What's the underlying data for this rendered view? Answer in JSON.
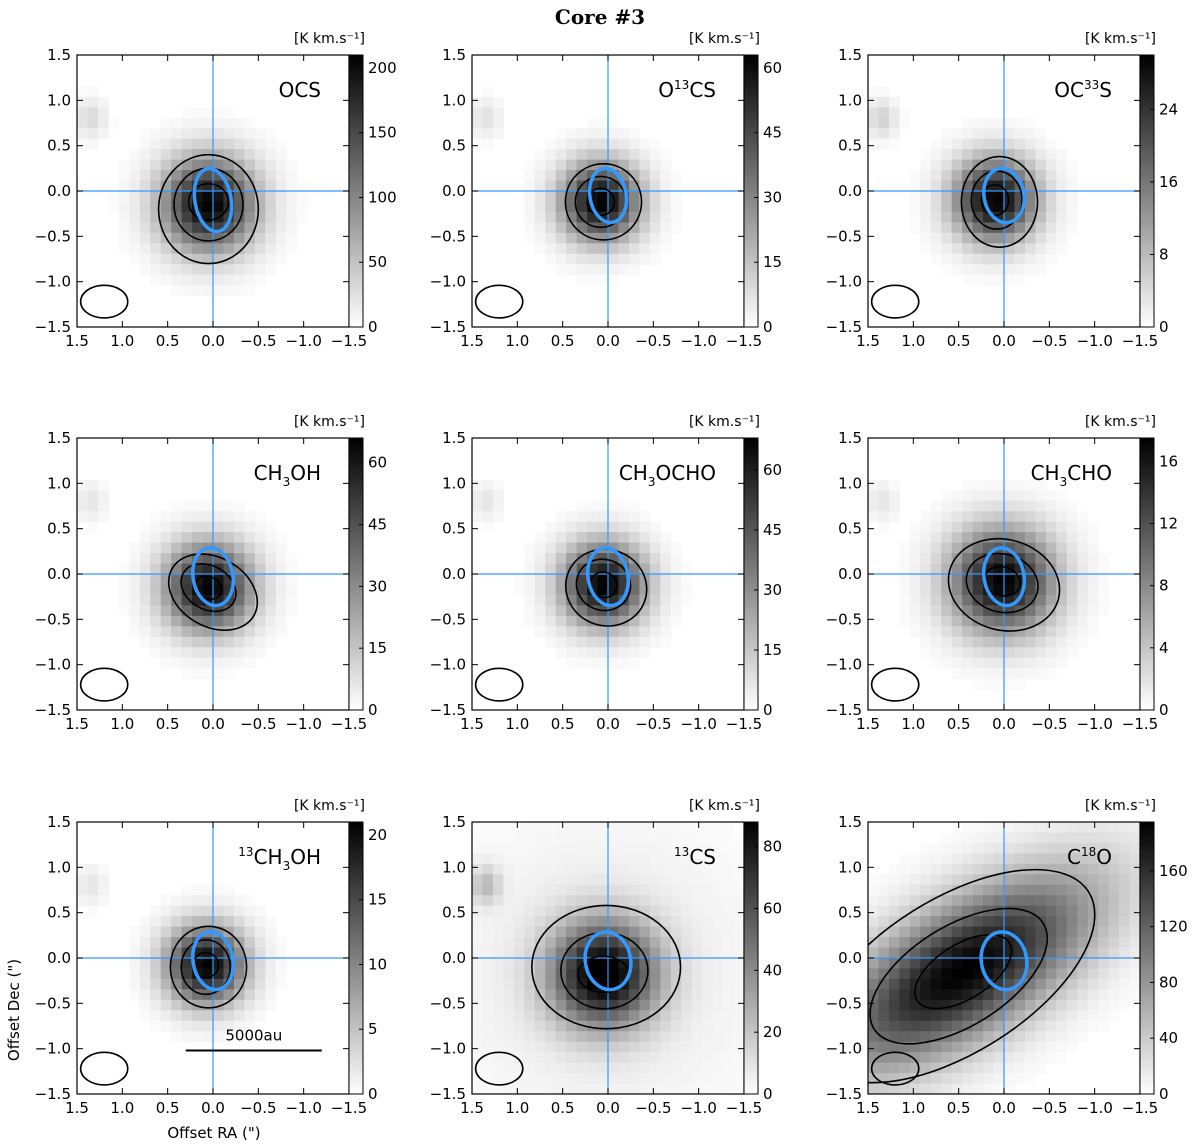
{
  "figure": {
    "title": "Core #3",
    "xlabel": "Offset RA (\")",
    "ylabel": "Offset Dec (\")",
    "scalebar_label": "5000au",
    "unit_label": "[K km.s⁻¹]"
  },
  "colors": {
    "crosshair": "#3399ff",
    "blue_contour": "#3399ff",
    "contour": "#000000",
    "cmap_low": "#ffffff",
    "cmap_high": "#000000"
  },
  "chart_data": [
    {
      "type": "heatmap",
      "molecule": {
        "base": "OCS",
        "iso_pre": "",
        "mid": "",
        "sub": "",
        "post": ""
      },
      "xlim": [
        1.5,
        -1.5
      ],
      "ylim": [
        -1.5,
        1.5
      ],
      "xticks": [
        "1.5",
        "1.0",
        "0.5",
        "0.0",
        "−0.5",
        "−1.0",
        "−1.5"
      ],
      "yticks": [
        "−1.5",
        "−1.0",
        "−0.5",
        "0.0",
        "0.5",
        "1.0",
        "1.5"
      ],
      "cbar_range": [
        0,
        210
      ],
      "cbar_ticks": [
        {
          "v": 0,
          "t": "0"
        },
        {
          "v": 50,
          "t": "50"
        },
        {
          "v": 100,
          "t": "100"
        },
        {
          "v": 150,
          "t": "150"
        },
        {
          "v": 200,
          "t": "200"
        }
      ],
      "peak_offset": [
        0.05,
        -0.15
      ],
      "peak_value": 205,
      "emission_fwhm": [
        0.45,
        0.45
      ],
      "contours": [
        {
          "cx": 0.05,
          "cy": -0.2,
          "rx": 0.55,
          "ry": 0.6,
          "angle": 0
        },
        {
          "cx": 0.05,
          "cy": -0.15,
          "rx": 0.38,
          "ry": 0.4,
          "angle": 0
        },
        {
          "cx": 0.05,
          "cy": -0.12,
          "rx": 0.22,
          "ry": 0.2,
          "angle": 0
        }
      ],
      "blue_ellipse": {
        "cx": 0.0,
        "cy": -0.1,
        "rx": 0.35,
        "ry": 0.2,
        "angle": 80
      },
      "beam": {
        "cx": 1.2,
        "cy": -1.22,
        "rx": 0.26,
        "ry": 0.18,
        "angle": 0
      },
      "secondary_blob": {
        "x": 1.35,
        "y": 0.8,
        "amp": 0.15
      }
    },
    {
      "type": "heatmap",
      "molecule": {
        "base": "",
        "iso_pre": "",
        "mid": "O",
        "sub": "13",
        "post": "CS"
      },
      "xlim": [
        1.5,
        -1.5
      ],
      "ylim": [
        -1.5,
        1.5
      ],
      "xticks": [
        "1.5",
        "1.0",
        "0.5",
        "0.0",
        "−0.5",
        "−1.0",
        "−1.5"
      ],
      "yticks": [
        "−1.5",
        "−1.0",
        "−0.5",
        "0.0",
        "0.5",
        "1.0",
        "1.5"
      ],
      "cbar_range": [
        0,
        63
      ],
      "cbar_ticks": [
        {
          "v": 0,
          "t": "0"
        },
        {
          "v": 15,
          "t": "15"
        },
        {
          "v": 30,
          "t": "30"
        },
        {
          "v": 45,
          "t": "45"
        },
        {
          "v": 60,
          "t": "60"
        }
      ],
      "peak_offset": [
        0.08,
        -0.12
      ],
      "peak_value": 62,
      "emission_fwhm": [
        0.38,
        0.38
      ],
      "contours": [
        {
          "cx": 0.05,
          "cy": -0.12,
          "rx": 0.42,
          "ry": 0.42,
          "angle": 0
        },
        {
          "cx": 0.08,
          "cy": -0.12,
          "rx": 0.28,
          "ry": 0.28,
          "angle": 0
        },
        {
          "cx": 0.08,
          "cy": -0.12,
          "rx": 0.15,
          "ry": 0.15,
          "angle": 0
        }
      ],
      "blue_ellipse": {
        "cx": 0.0,
        "cy": -0.05,
        "rx": 0.3,
        "ry": 0.2,
        "angle": 80
      },
      "beam": {
        "cx": 1.2,
        "cy": -1.22,
        "rx": 0.26,
        "ry": 0.18,
        "angle": 0
      },
      "secondary_blob": {
        "x": 1.35,
        "y": 0.8,
        "amp": 0.12
      }
    },
    {
      "type": "heatmap",
      "molecule": {
        "base": "",
        "iso_pre": "",
        "mid": "OC",
        "sub": "33",
        "post": "S"
      },
      "xlim": [
        1.5,
        -1.5
      ],
      "ylim": [
        -1.5,
        1.5
      ],
      "xticks": [
        "1.5",
        "1.0",
        "0.5",
        "0.0",
        "−0.5",
        "−1.0",
        "−1.5"
      ],
      "yticks": [
        "−1.5",
        "−1.0",
        "−0.5",
        "0.0",
        "0.5",
        "1.0",
        "1.5"
      ],
      "cbar_range": [
        0,
        30
      ],
      "cbar_ticks": [
        {
          "v": 0,
          "t": "0"
        },
        {
          "v": 8,
          "t": "8"
        },
        {
          "v": 16,
          "t": "16"
        },
        {
          "v": 24,
          "t": "24"
        }
      ],
      "peak_offset": [
        0.1,
        -0.1
      ],
      "peak_value": 29,
      "emission_fwhm": [
        0.4,
        0.4
      ],
      "contours": [
        {
          "cx": 0.05,
          "cy": -0.12,
          "rx": 0.42,
          "ry": 0.5,
          "angle": 0
        },
        {
          "cx": 0.08,
          "cy": -0.1,
          "rx": 0.28,
          "ry": 0.32,
          "angle": 0
        },
        {
          "cx": 0.1,
          "cy": -0.1,
          "rx": 0.15,
          "ry": 0.17,
          "angle": 0
        }
      ],
      "blue_ellipse": {
        "cx": 0.0,
        "cy": -0.05,
        "rx": 0.3,
        "ry": 0.22,
        "angle": 80
      },
      "beam": {
        "cx": 1.2,
        "cy": -1.22,
        "rx": 0.26,
        "ry": 0.18,
        "angle": 0
      },
      "secondary_blob": {
        "x": 1.35,
        "y": 0.8,
        "amp": 0.18
      }
    },
    {
      "type": "heatmap",
      "molecule": {
        "base": "",
        "iso_pre": "",
        "mid": "CH",
        "sub": "3",
        "post": "OH"
      },
      "xlim": [
        1.5,
        -1.5
      ],
      "ylim": [
        -1.5,
        1.5
      ],
      "xticks": [
        "1.5",
        "1.0",
        "0.5",
        "0.0",
        "−0.5",
        "−1.0",
        "−1.5"
      ],
      "yticks": [
        "−1.5",
        "−1.0",
        "−0.5",
        "0.0",
        "0.5",
        "1.0",
        "1.5"
      ],
      "cbar_range": [
        0,
        66
      ],
      "cbar_ticks": [
        {
          "v": 0,
          "t": "0"
        },
        {
          "v": 15,
          "t": "15"
        },
        {
          "v": 30,
          "t": "30"
        },
        {
          "v": 45,
          "t": "45"
        },
        {
          "v": 60,
          "t": "60"
        }
      ],
      "peak_offset": [
        0.05,
        -0.15
      ],
      "peak_value": 64,
      "emission_fwhm": [
        0.42,
        0.42
      ],
      "contours": [
        {
          "cx": 0.0,
          "cy": -0.2,
          "rx": 0.52,
          "ry": 0.38,
          "angle": 30
        },
        {
          "cx": 0.05,
          "cy": -0.15,
          "rx": 0.32,
          "ry": 0.24,
          "angle": 30
        },
        {
          "cx": 0.05,
          "cy": -0.15,
          "rx": 0.15,
          "ry": 0.12,
          "angle": 30
        }
      ],
      "blue_ellipse": {
        "cx": 0.0,
        "cy": -0.03,
        "rx": 0.32,
        "ry": 0.22,
        "angle": 80
      },
      "beam": {
        "cx": 1.2,
        "cy": -1.22,
        "rx": 0.26,
        "ry": 0.18,
        "angle": 0
      },
      "secondary_blob": {
        "x": 1.35,
        "y": 0.8,
        "amp": 0.1
      }
    },
    {
      "type": "heatmap",
      "molecule": {
        "base": "",
        "iso_pre": "",
        "mid": "CH",
        "sub": "3",
        "post": "OCHO"
      },
      "xlim": [
        1.5,
        -1.5
      ],
      "ylim": [
        -1.5,
        1.5
      ],
      "xticks": [
        "1.5",
        "1.0",
        "0.5",
        "0.0",
        "−0.5",
        "−1.0",
        "−1.5"
      ],
      "yticks": [
        "−1.5",
        "−1.0",
        "−0.5",
        "0.0",
        "0.5",
        "1.0",
        "1.5"
      ],
      "cbar_range": [
        0,
        68
      ],
      "cbar_ticks": [
        {
          "v": 0,
          "t": "0"
        },
        {
          "v": 15,
          "t": "15"
        },
        {
          "v": 30,
          "t": "30"
        },
        {
          "v": 45,
          "t": "45"
        },
        {
          "v": 60,
          "t": "60"
        }
      ],
      "peak_offset": [
        0.05,
        -0.12
      ],
      "peak_value": 67,
      "emission_fwhm": [
        0.4,
        0.4
      ],
      "contours": [
        {
          "cx": 0.02,
          "cy": -0.15,
          "rx": 0.45,
          "ry": 0.42,
          "angle": 20
        },
        {
          "cx": 0.05,
          "cy": -0.12,
          "rx": 0.3,
          "ry": 0.28,
          "angle": 20
        },
        {
          "cx": 0.05,
          "cy": -0.12,
          "rx": 0.15,
          "ry": 0.14,
          "angle": 20
        }
      ],
      "blue_ellipse": {
        "cx": 0.0,
        "cy": -0.03,
        "rx": 0.32,
        "ry": 0.22,
        "angle": 80
      },
      "beam": {
        "cx": 1.2,
        "cy": -1.22,
        "rx": 0.26,
        "ry": 0.18,
        "angle": 0
      },
      "secondary_blob": {
        "x": 1.35,
        "y": 0.8,
        "amp": 0.1
      }
    },
    {
      "type": "heatmap",
      "molecule": {
        "base": "",
        "iso_pre": "",
        "mid": "CH",
        "sub": "3",
        "post": "CHO"
      },
      "xlim": [
        1.5,
        -1.5
      ],
      "ylim": [
        -1.5,
        1.5
      ],
      "xticks": [
        "1.5",
        "1.0",
        "0.5",
        "0.0",
        "−0.5",
        "−1.0",
        "−1.5"
      ],
      "yticks": [
        "−1.5",
        "−1.0",
        "−0.5",
        "0.0",
        "0.5",
        "1.0",
        "1.5"
      ],
      "cbar_range": [
        0,
        17.5
      ],
      "cbar_ticks": [
        {
          "v": 0,
          "t": "0"
        },
        {
          "v": 4,
          "t": "4"
        },
        {
          "v": 8,
          "t": "8"
        },
        {
          "v": 12,
          "t": "12"
        },
        {
          "v": 16,
          "t": "16"
        }
      ],
      "peak_offset": [
        0.02,
        -0.08
      ],
      "peak_value": 17,
      "emission_fwhm": [
        0.5,
        0.5
      ],
      "contours": [
        {
          "cx": 0.0,
          "cy": -0.12,
          "rx": 0.62,
          "ry": 0.5,
          "angle": 15
        },
        {
          "cx": 0.02,
          "cy": -0.1,
          "rx": 0.4,
          "ry": 0.32,
          "angle": 15
        },
        {
          "cx": 0.02,
          "cy": -0.08,
          "rx": 0.2,
          "ry": 0.16,
          "angle": 15
        }
      ],
      "blue_ellipse": {
        "cx": 0.0,
        "cy": -0.03,
        "rx": 0.32,
        "ry": 0.22,
        "angle": 80
      },
      "beam": {
        "cx": 1.2,
        "cy": -1.22,
        "rx": 0.26,
        "ry": 0.18,
        "angle": 0
      },
      "secondary_blob": {
        "x": 1.35,
        "y": 0.8,
        "amp": 0.1
      }
    },
    {
      "type": "heatmap",
      "molecule": {
        "base": "",
        "iso_pre": "13",
        "mid": "CH",
        "sub": "3",
        "post": "OH"
      },
      "xlim": [
        1.5,
        -1.5
      ],
      "ylim": [
        -1.5,
        1.5
      ],
      "xticks": [
        "1.5",
        "1.0",
        "0.5",
        "0.0",
        "−0.5",
        "−1.0",
        "−1.5"
      ],
      "yticks": [
        "−1.5",
        "−1.0",
        "−0.5",
        "0.0",
        "0.5",
        "1.0",
        "1.5"
      ],
      "cbar_range": [
        0,
        21
      ],
      "cbar_ticks": [
        {
          "v": 0,
          "t": "0"
        },
        {
          "v": 5,
          "t": "5"
        },
        {
          "v": 10,
          "t": "10"
        },
        {
          "v": 15,
          "t": "15"
        },
        {
          "v": 20,
          "t": "20"
        }
      ],
      "peak_offset": [
        0.08,
        -0.08
      ],
      "peak_value": 20.5,
      "emission_fwhm": [
        0.38,
        0.38
      ],
      "contours": [
        {
          "cx": 0.05,
          "cy": -0.1,
          "rx": 0.42,
          "ry": 0.45,
          "angle": 0
        },
        {
          "cx": 0.08,
          "cy": -0.1,
          "rx": 0.27,
          "ry": 0.3,
          "angle": 0
        },
        {
          "cx": 0.08,
          "cy": -0.08,
          "rx": 0.14,
          "ry": 0.14,
          "angle": 0
        }
      ],
      "blue_ellipse": {
        "cx": 0.0,
        "cy": -0.03,
        "rx": 0.32,
        "ry": 0.22,
        "angle": 80
      },
      "beam": {
        "cx": 1.2,
        "cy": -1.22,
        "rx": 0.26,
        "ry": 0.18,
        "angle": 0
      },
      "secondary_blob": {
        "x": 1.35,
        "y": 0.8,
        "amp": 0.1
      },
      "scalebar": {
        "x0": 0.3,
        "x1": -1.2,
        "y": -1.02
      }
    },
    {
      "type": "heatmap",
      "molecule": {
        "base": "",
        "iso_pre": "13",
        "mid": "CS",
        "sub": "",
        "post": ""
      },
      "xlim": [
        1.5,
        -1.5
      ],
      "ylim": [
        -1.5,
        1.5
      ],
      "xticks": [
        "1.5",
        "1.0",
        "0.5",
        "0.0",
        "−0.5",
        "−1.0",
        "−1.5"
      ],
      "yticks": [
        "−1.5",
        "−1.0",
        "−0.5",
        "0.0",
        "0.5",
        "1.0",
        "1.5"
      ],
      "cbar_range": [
        0,
        88
      ],
      "cbar_ticks": [
        {
          "v": 0,
          "t": "0"
        },
        {
          "v": 20,
          "t": "20"
        },
        {
          "v": 40,
          "t": "40"
        },
        {
          "v": 60,
          "t": "60"
        },
        {
          "v": 80,
          "t": "80"
        }
      ],
      "peak_offset": [
        0.05,
        -0.18
      ],
      "peak_value": 86,
      "emission_fwhm": [
        0.5,
        0.5
      ],
      "background_level": 0.08,
      "contours": [
        {
          "cx": 0.02,
          "cy": -0.1,
          "rx": 0.82,
          "ry": 0.68,
          "angle": 0
        },
        {
          "cx": 0.04,
          "cy": -0.14,
          "rx": 0.48,
          "ry": 0.42,
          "angle": 0
        },
        {
          "cx": 0.05,
          "cy": -0.18,
          "rx": 0.28,
          "ry": 0.2,
          "angle": 0
        }
      ],
      "blue_ellipse": {
        "cx": 0.0,
        "cy": -0.03,
        "rx": 0.32,
        "ry": 0.25,
        "angle": 80
      },
      "beam": {
        "cx": 1.2,
        "cy": -1.22,
        "rx": 0.26,
        "ry": 0.18,
        "angle": 0
      },
      "secondary_blob": {
        "x": 1.35,
        "y": 0.8,
        "amp": 0.25
      }
    },
    {
      "type": "heatmap",
      "molecule": {
        "base": "",
        "iso_pre": "",
        "mid": "C",
        "sub": "18",
        "post": "O"
      },
      "xlim": [
        1.5,
        -1.5
      ],
      "ylim": [
        -1.5,
        1.5
      ],
      "xticks": [
        "1.5",
        "1.0",
        "0.5",
        "0.0",
        "−0.5",
        "−1.0",
        "−1.5"
      ],
      "yticks": [
        "−1.5",
        "−1.0",
        "−0.5",
        "0.0",
        "0.5",
        "1.0",
        "1.5"
      ],
      "cbar_range": [
        0,
        195
      ],
      "cbar_ticks": [
        {
          "v": 0,
          "t": "0"
        },
        {
          "v": 40,
          "t": "40"
        },
        {
          "v": 80,
          "t": "80"
        },
        {
          "v": 120,
          "t": "120"
        },
        {
          "v": 160,
          "t": "160"
        }
      ],
      "peak_offset": [
        0.45,
        -0.15
      ],
      "peak_value": 190,
      "emission_fwhm": [
        1.4,
        0.6
      ],
      "emission_angle": -32,
      "contours": [
        {
          "cx": 0.55,
          "cy": -0.2,
          "rx": 1.75,
          "ry": 0.85,
          "angle": -32
        },
        {
          "cx": 0.5,
          "cy": -0.2,
          "rx": 1.1,
          "ry": 0.55,
          "angle": -32
        },
        {
          "cx": 0.45,
          "cy": -0.15,
          "rx": 0.6,
          "ry": 0.3,
          "angle": -32
        }
      ],
      "blue_ellipse": {
        "cx": 0.0,
        "cy": -0.03,
        "rx": 0.32,
        "ry": 0.25,
        "angle": 80
      },
      "beam": {
        "cx": 1.2,
        "cy": -1.22,
        "rx": 0.26,
        "ry": 0.18,
        "angle": 0
      },
      "secondary_blob": {
        "x": 1.35,
        "y": 0.8,
        "amp": 0.0
      }
    }
  ]
}
